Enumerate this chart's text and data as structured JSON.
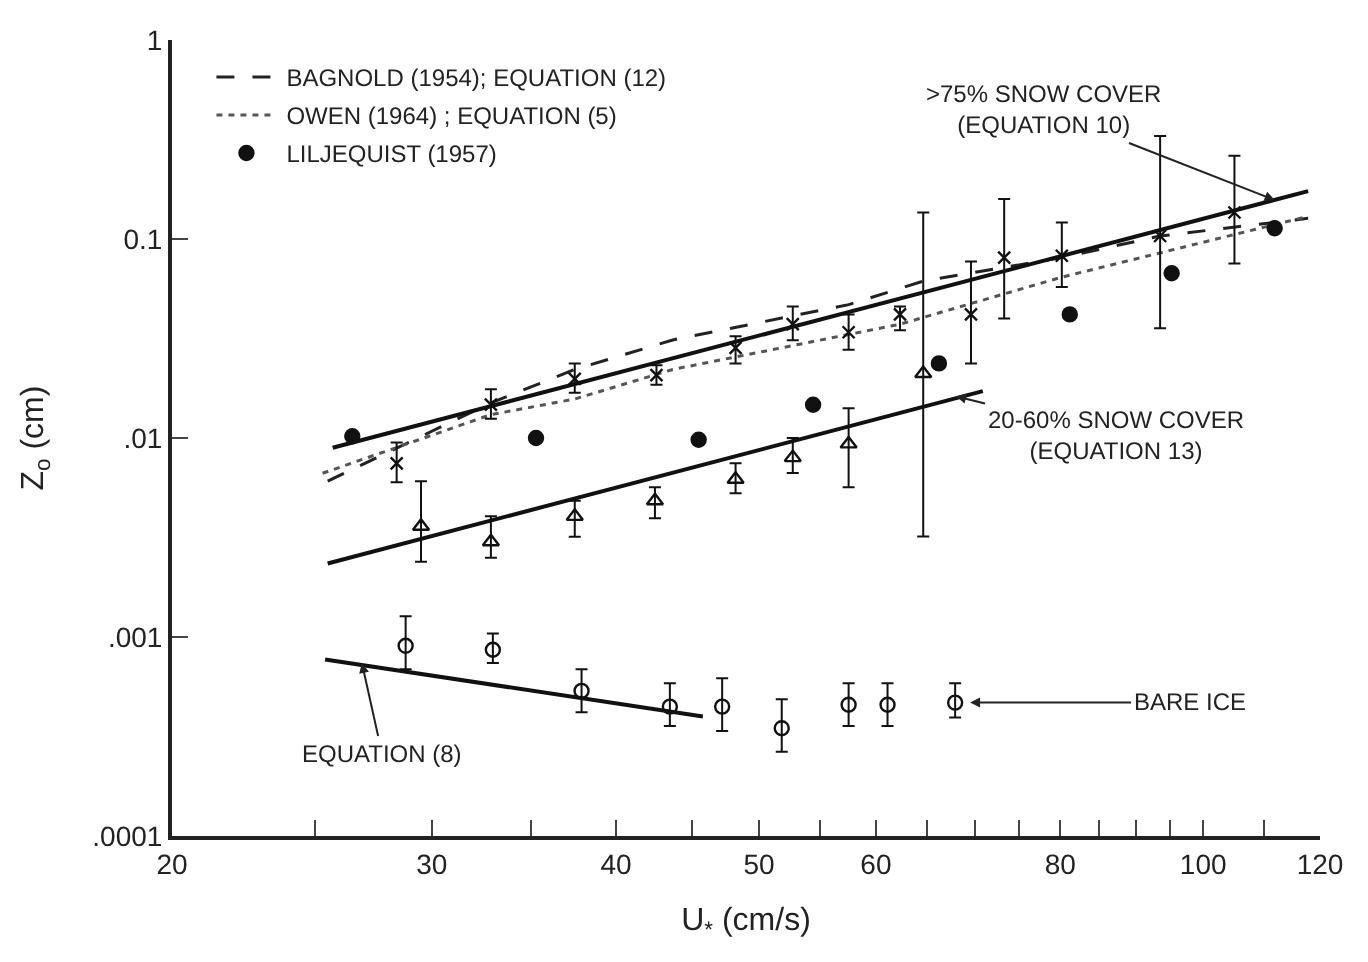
{
  "chart_data": {
    "type": "scatter",
    "xlabel": "U$_{*}$ (cm/s)",
    "ylabel": "Z$_{o}$ (cm)",
    "log": "xy",
    "legend": "top left",
    "xlim": [
      20,
      120
    ],
    "xticks": [
      20,
      {
        "value": 25,
        "label": null
      },
      30,
      {
        "value": 35,
        "label": null
      },
      40,
      {
        "value": 45,
        "label": null
      },
      50,
      {
        "value": 55,
        "label": null
      },
      60,
      {
        "value": 65,
        "label": null
      },
      {
        "value": 70,
        "label": null
      },
      {
        "value": 75,
        "label": null
      },
      80,
      {
        "value": 85,
        "label": null
      },
      {
        "value": 90,
        "label": null
      },
      {
        "value": 95,
        "label": null
      },
      100,
      {
        "value": 110,
        "label": null
      },
      120
    ],
    "ylim": [
      0.0001,
      1
    ],
    "yticks": [
      {
        "value": 0.0001,
        "label": ".0001"
      },
      {
        "value": 0.001,
        "label": ".001"
      },
      {
        "value": 0.01,
        "label": ".01"
      },
      {
        "value": 0.1,
        "label": "0.1"
      },
      {
        "value": 1,
        "label": "1"
      }
    ],
    "series": [
      {
        "name": "BAGNOLD (1954); EQUATION (12)",
        "type": "line",
        "line_style": "dashed",
        "marker": "none",
        "color": "#222222",
        "x": [
          25.5,
          32.9,
          37.5,
          43.7,
          57.5,
          64.6,
          80.2,
          93.5,
          117.8
        ],
        "values": [
          0.00607,
          0.015,
          0.0221,
          0.0311,
          0.0468,
          0.0614,
          0.0806,
          0.1035,
          0.127
        ]
      },
      {
        "name": "OWEN (1964) ; EQUATION (5)",
        "type": "line",
        "line_style": "dotted",
        "marker": "none",
        "color": "#555555",
        "x": [
          25.3,
          32.9,
          37.5,
          43.7,
          62.3,
          80.2,
          117.8
        ],
        "values": [
          0.00665,
          0.0131,
          0.0157,
          0.0221,
          0.0373,
          0.0643,
          0.13
        ]
      },
      {
        "name": "LILJEQUIST (1957)",
        "marker": "circle",
        "color": "#111111",
        "x": [
          26.5,
          35.3,
          45.5,
          54.4,
          66.2,
          81.2,
          95.2,
          111.8
        ],
        "values": [
          0.0102,
          0.01,
          0.0098,
          0.0147,
          0.0237,
          0.0418,
          0.0673,
          0.1133
        ]
      },
      {
        "type": "line",
        "line_style": "solid",
        "marker": "none",
        "color": "#111111",
        "x": [
          25.7,
          117.8
        ],
        "values": [
          0.00893,
          0.174
        ]
      },
      {
        "type": "line",
        "line_style": "solid",
        "marker": "none",
        "color": "#111111",
        "x": [
          25.5,
          70.9
        ],
        "values": [
          0.00234,
          0.0172
        ]
      },
      {
        "type": "line",
        "line_style": "solid",
        "marker": "none",
        "color": "#111111",
        "x": [
          25.4,
          45.8
        ],
        "values": [
          0.00077,
          0.000399
        ]
      },
      {
        "marker": "cross",
        "color": "#111111",
        "x": [
          28.4,
          32.9,
          37.5,
          42.6,
          48.2,
          52.7,
          57.5,
          62.3,
          69.6,
          73.3,
          80.2,
          93.5,
          105
        ],
        "values": [
          0.00745,
          0.0147,
          0.0198,
          0.0207,
          0.0284,
          0.0373,
          0.034,
          0.0418,
          0.0418,
          0.0806,
          0.0824,
          0.1035,
          0.1359
        ],
        "errors": [
          [
            0.006,
            0.0095
          ],
          [
            0.0125,
            0.0176
          ],
          [
            0.0169,
            0.0237
          ],
          [
            0.0185,
            0.0232
          ],
          [
            0.0237,
            0.0325
          ],
          [
            0.031,
            0.0458
          ],
          [
            0.0278,
            0.0418
          ],
          [
            0.0348,
            0.0458
          ],
          [
            0.0237,
            0.077
          ],
          [
            0.0399,
            0.159
          ],
          [
            0.0574,
            0.121
          ],
          [
            0.0356,
            0.329
          ],
          [
            0.0753,
            0.262
          ]
        ]
      },
      {
        "marker": "triangle",
        "color": "#111111",
        "x": [
          29.5,
          32.9,
          37.5,
          42.5,
          48.2,
          52.7,
          57.5,
          64.6
        ],
        "values": [
          0.0036,
          0.00301,
          0.00404,
          0.00484,
          0.00621,
          0.00797,
          0.00934,
          0.0211
        ],
        "errors": [
          [
            0.00239,
            0.00607
          ],
          [
            0.0025,
            0.00404
          ],
          [
            0.00319,
            0.00484
          ],
          [
            0.00395,
            0.00565
          ],
          [
            0.00528,
            0.00746
          ],
          [
            0.00667,
            0.01
          ],
          [
            0.00565,
            0.0141
          ],
          [
            0.0032,
            0.136
          ]
        ]
      },
      {
        "marker": "circle",
        "color": "#111111",
        "x": [
          28.8,
          33.0,
          37.9,
          43.5,
          47.2,
          51.8,
          57.5,
          61.1,
          67.9
        ],
        "values": [
          0.000903,
          0.000863,
          0.000536,
          0.000447,
          0.000447,
          0.000348,
          0.000457,
          0.000457,
          0.000468
        ],
        "errors": [
          [
            0.000688,
            0.00127
          ],
          [
            0.00074,
            0.00104
          ],
          [
            0.000419,
            0.000688
          ],
          [
            0.000357,
            0.000585
          ],
          [
            0.000337,
            0.000621
          ],
          [
            0.000265,
            0.000487
          ],
          [
            0.000357,
            0.000585
          ],
          [
            0.000357,
            0.000585
          ],
          [
            0.000394,
            0.000585
          ]
        ]
      }
    ],
    "annotations": [
      {
        "text": ">75% SNOW COVER\n(EQUATION 10)",
        "x": 111.8,
        "y": 0.157
      },
      {
        "text": "20-60% SNOW COVER\n(EQUATION 13)",
        "x": 68,
        "y": 0.0162
      },
      {
        "text": "EQUATION (8)",
        "x": 26.9,
        "y": 0.00074
      },
      {
        "text": "BARE ICE",
        "x": 69.5,
        "y": 0.000468
      }
    ]
  }
}
